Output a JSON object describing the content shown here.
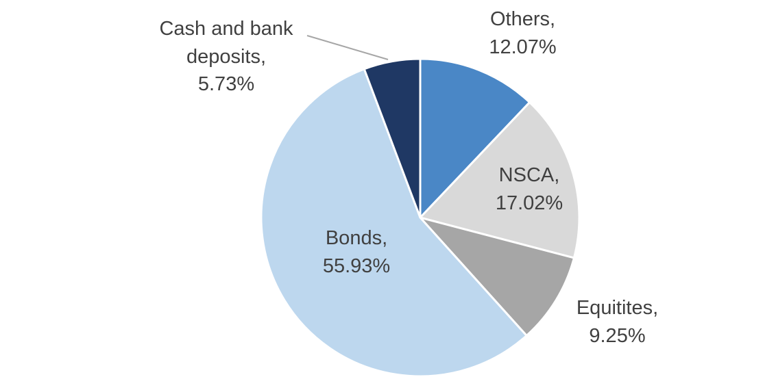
{
  "chart_data": {
    "type": "pie",
    "title": "",
    "direction": "clockwise",
    "start_angle": "top",
    "legend": "none",
    "label_style": "category name and percentage, outside or inside slices",
    "slices": [
      {
        "name": "Others",
        "value": 12.07,
        "percent_label": "12.07%",
        "color": "#4a87c6",
        "label_lines": [
          "Others,",
          "12.07%"
        ]
      },
      {
        "name": "NSCA",
        "value": 17.02,
        "percent_label": "17.02%",
        "color": "#d9d9d9",
        "label_lines": [
          "NSCA,",
          "17.02%"
        ]
      },
      {
        "name": "Equitites",
        "value": 9.25,
        "percent_label": "9.25%",
        "color": "#a6a6a6",
        "label_lines": [
          "Equitites,",
          "9.25%"
        ]
      },
      {
        "name": "Bonds",
        "value": 55.93,
        "percent_label": "55.93%",
        "color": "#bdd7ee",
        "label_lines": [
          "Bonds,",
          "55.93%"
        ]
      },
      {
        "name": "Cash and bank deposits",
        "value": 5.73,
        "percent_label": "5.73%",
        "color": "#1f3864",
        "label_lines": [
          "Cash and bank",
          "deposits,",
          "5.73%"
        ]
      }
    ],
    "colors": {
      "text": "#404040",
      "leader_line": "#a6a6a6",
      "slice_border": "#ffffff"
    }
  }
}
